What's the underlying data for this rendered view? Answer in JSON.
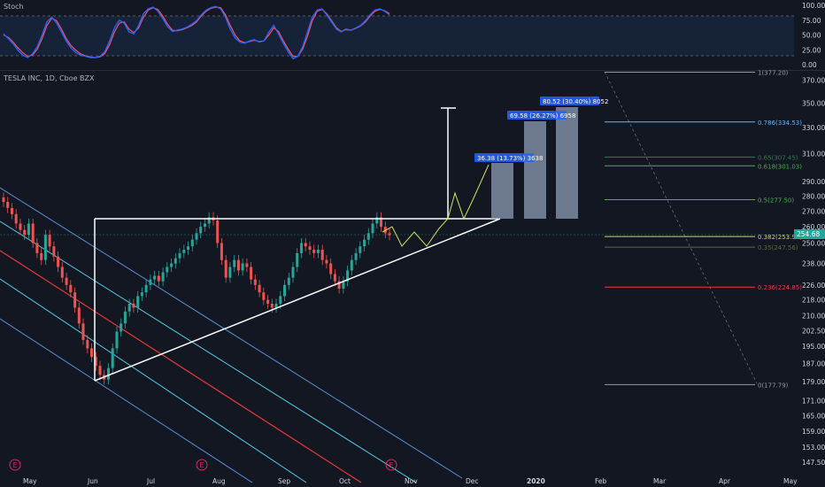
{
  "stoch_panel": {
    "title": "Stoch",
    "ticks": [
      "100.00",
      "75.00",
      "50.00",
      "25.00",
      "0.00"
    ],
    "k_series": [
      52,
      44,
      35,
      24,
      16,
      12,
      18,
      30,
      50,
      72,
      80,
      70,
      55,
      40,
      28,
      20,
      16,
      14,
      12,
      12,
      14,
      22,
      40,
      62,
      75,
      70,
      55,
      52,
      66,
      86,
      94,
      97,
      90,
      78,
      64,
      56,
      58,
      60,
      63,
      68,
      74,
      84,
      92,
      96,
      98,
      94,
      80,
      60,
      45,
      38,
      36,
      40,
      42,
      38,
      40,
      55,
      66,
      52,
      36,
      22,
      10,
      14,
      30,
      55,
      80,
      92,
      94,
      84,
      72,
      60,
      55,
      60,
      58,
      62,
      66,
      74,
      84,
      92,
      94,
      90,
      84
    ],
    "d_series": [
      50,
      46,
      38,
      28,
      20,
      14,
      16,
      26,
      44,
      66,
      78,
      74,
      60,
      44,
      32,
      24,
      18,
      15,
      13,
      12,
      13,
      19,
      34,
      55,
      70,
      72,
      60,
      54,
      62,
      80,
      92,
      96,
      93,
      82,
      68,
      58,
      57,
      59,
      62,
      66,
      72,
      82,
      90,
      95,
      97,
      96,
      84,
      66,
      50,
      40,
      37,
      39,
      41,
      39,
      40,
      50,
      62,
      56,
      40,
      26,
      14,
      14,
      26,
      48,
      74,
      90,
      93,
      86,
      74,
      62,
      56,
      59,
      58,
      61,
      65,
      72,
      82,
      90,
      93,
      91,
      86
    ],
    "overbought": 80,
    "oversold": 20
  },
  "main_panel": {
    "symbol_title": "TESLA INC, 1D, Cboe BZX",
    "price_ticks": [
      "370.00",
      "350.00",
      "330.00",
      "310.00",
      "290.00",
      "280.00",
      "270.00",
      "260.00",
      "250.00",
      "238.00",
      "226.00",
      "218.00",
      "210.00",
      "202.50",
      "195.00",
      "187.00",
      "179.00",
      "171.00",
      "165.00",
      "159.00",
      "153.00",
      "147.50"
    ],
    "price_tick_values": [
      370,
      350,
      330,
      310,
      290,
      280,
      270,
      260,
      250,
      238,
      226,
      218,
      210,
      202.5,
      195,
      187,
      179,
      171,
      165,
      159,
      153,
      147.5
    ],
    "current_price_label": "254.68",
    "current_price": 254.68,
    "time_ticks": [
      "May",
      "Jun",
      "Jul",
      "Aug",
      "Sep",
      "Oct",
      "Nov",
      "Dec",
      "2020",
      "Feb",
      "Mar",
      "Apr",
      "May"
    ],
    "earnings_markers": [
      "E",
      "E",
      "E"
    ]
  },
  "fib_levels": [
    {
      "label": "1(377.20)",
      "value": 377.2,
      "color": "#9598a1"
    },
    {
      "label": "0.786(334.53)",
      "value": 334.53,
      "color": "#64b5f6"
    },
    {
      "label": "0.65(307.45)",
      "value": 307.45,
      "color": "#2e7d52"
    },
    {
      "label": "0.618(301.03)",
      "value": 301.03,
      "color": "#4caf50"
    },
    {
      "label": "0.5(277.50)",
      "value": 277.5,
      "color": "#4caf50"
    },
    {
      "label": "0.382(253.97)",
      "value": 253.97,
      "color": "#cddc39"
    },
    {
      "label": "0.35(247.56)",
      "value": 247.56,
      "color": "#5d6b3a"
    },
    {
      "label": "0.236(224.85)",
      "value": 224.85,
      "color": "#f23645"
    },
    {
      "label": "0(177.79)",
      "value": 177.79,
      "color": "#9598a1"
    }
  ],
  "measure_labels": [
    {
      "text": "36.38 (13.73%) 3638"
    },
    {
      "text": "69.58 (26.27%) 6958"
    },
    {
      "text": "80.52 (30.40%) 8052"
    }
  ],
  "chart_data": {
    "type": "candlestick",
    "title": "TESLA INC, 1D, Cboe BZX",
    "exchange": "Cboe BZX",
    "interval": "1D",
    "ylim": [
      147.5,
      372
    ],
    "y_scale": "log",
    "current_price": 254.68,
    "closes": [
      276,
      272,
      268,
      262,
      258,
      255,
      262,
      250,
      244,
      240,
      255,
      248,
      242,
      236,
      230,
      226,
      222,
      214,
      206,
      198,
      194,
      190,
      186,
      182,
      180,
      185,
      194,
      202,
      206,
      212,
      216,
      214,
      220,
      222,
      226,
      229,
      231,
      228,
      233,
      236,
      238,
      241,
      244,
      246,
      248,
      252,
      256,
      260,
      262,
      266,
      264,
      250,
      240,
      230,
      236,
      240,
      234,
      238,
      236,
      229,
      226,
      222,
      218,
      216,
      214,
      216,
      220,
      226,
      230,
      236,
      244,
      250,
      248,
      246,
      244,
      246,
      240,
      238,
      232,
      228,
      224,
      228,
      234,
      240,
      244,
      248,
      252,
      256,
      262,
      266,
      260,
      256,
      254.68
    ],
    "patterns": {
      "triangle_top": 264,
      "triangle_apex_price": 264,
      "triangle_low_price": 181,
      "measured_move_top": 345
    }
  }
}
